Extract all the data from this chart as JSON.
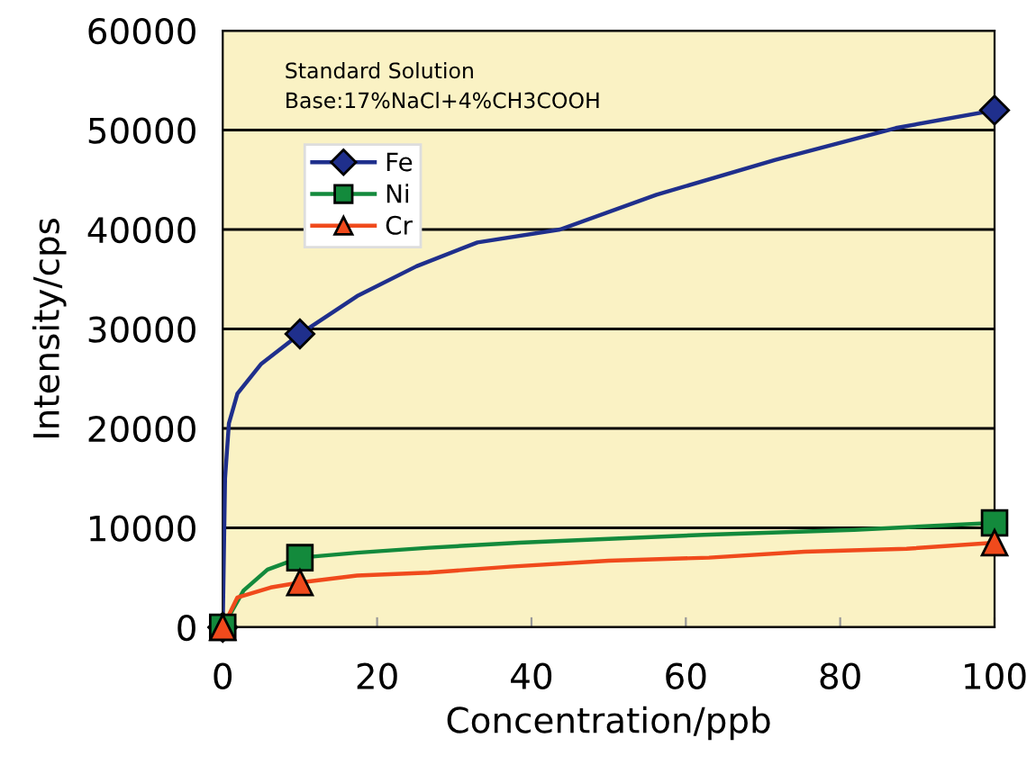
{
  "chart_data": {
    "type": "line",
    "xlabel": "Concentration/ppb",
    "ylabel": "Intensity/cps",
    "annotations": [
      "Standard Solution",
      "Base:17%NaCl+4%CH3COOH"
    ],
    "series": [
      {
        "name": "Fe",
        "color": "#1f2f8c",
        "x": [
          0,
          0.3,
          0.8,
          1.9,
          5,
          10,
          17.4,
          25.1,
          33,
          43.7,
          56.2,
          71.6,
          87.2,
          100
        ],
        "values": [
          0,
          15000,
          20500,
          23500,
          26500,
          29500,
          33300,
          36300,
          38700,
          40000,
          43500,
          47000,
          50200,
          52000
        ]
      },
      {
        "name": "Ni",
        "color": "#138a3c",
        "x": [
          0,
          2.7,
          5.8,
          10,
          17.4,
          26.7,
          38.4,
          50,
          62.3,
          81.8,
          100
        ],
        "values": [
          0,
          3700,
          5800,
          7000,
          7500,
          8000,
          8500,
          8900,
          9300,
          9800,
          10500
        ]
      },
      {
        "name": "Cr",
        "color": "#f04a1c",
        "x": [
          0,
          1.9,
          6.2,
          10,
          17.4,
          26.7,
          37.2,
          50,
          63,
          75.4,
          88.6,
          100
        ],
        "values": [
          0,
          3000,
          4000,
          4500,
          5200,
          5500,
          6100,
          6700,
          7000,
          7600,
          7900,
          8500
        ]
      },
      {
        "type": "scatter",
        "color": "#1f2f8c",
        "marker": "diamond",
        "x": [
          0,
          10,
          100
        ],
        "values": [
          0,
          29500,
          52000
        ]
      },
      {
        "type": "scatter",
        "color": "#138a3c",
        "marker": "square",
        "x": [
          0,
          10,
          100
        ],
        "values": [
          0,
          7000,
          10500
        ]
      },
      {
        "type": "scatter",
        "color": "#f04a1c",
        "marker": "triangle",
        "x": [
          0,
          10,
          100
        ],
        "values": [
          0,
          4500,
          8500
        ]
      }
    ],
    "xlim": [
      0,
      100
    ],
    "xticks": [
      0,
      20,
      40,
      60,
      80,
      100
    ],
    "ylim": [
      0,
      60000
    ],
    "yticks": [
      0,
      10000,
      20000,
      30000,
      40000,
      50000,
      60000
    ],
    "grid": "y",
    "legend": "top left",
    "line_style": "solid"
  }
}
